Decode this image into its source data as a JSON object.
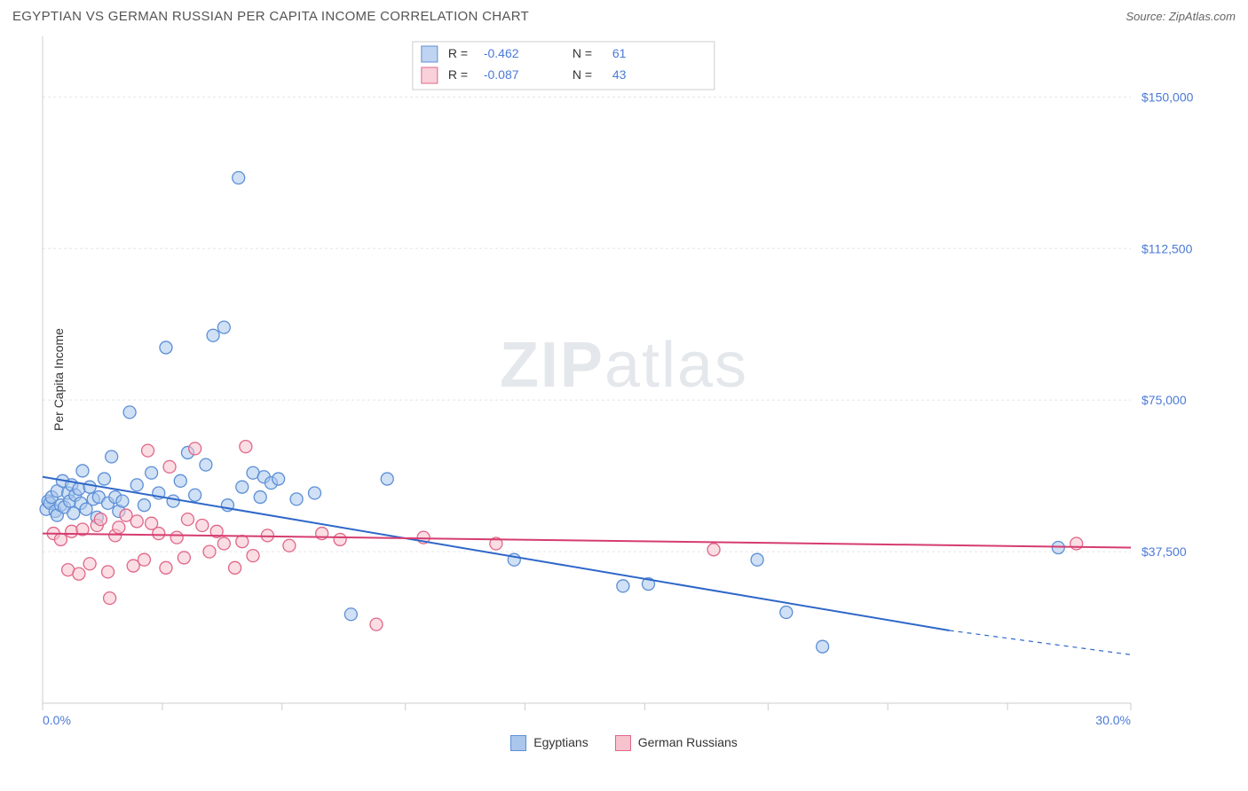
{
  "header": {
    "title": "EGYPTIAN VS GERMAN RUSSIAN PER CAPITA INCOME CORRELATION CHART",
    "source_prefix": "Source: ",
    "source": "ZipAtlas.com"
  },
  "watermark": {
    "left": "ZIP",
    "right": "atlas"
  },
  "chart": {
    "type": "scatter",
    "ylabel": "Per Capita Income",
    "xlim": [
      0,
      30
    ],
    "ylim": [
      0,
      165000
    ],
    "x_ticks": [
      0,
      3.3,
      6.6,
      10,
      13.3,
      16.6,
      20,
      23.3,
      26.6,
      30
    ],
    "x_tick_labels_visible": {
      "0": "0.0%",
      "30": "30.0%"
    },
    "y_ticks": [
      37500,
      75000,
      112500,
      150000
    ],
    "y_tick_labels": [
      "$37,500",
      "$75,000",
      "$112,500",
      "$150,000"
    ],
    "background_color": "#ffffff",
    "grid_color": "#e5e5e5",
    "axis_color": "#cccccc",
    "label_color": "#4b7ad6",
    "marker_radius": 7,
    "marker_stroke_width": 1.3,
    "line_width": 2,
    "series": [
      {
        "name": "Egyptians",
        "fill": "#aac6ec",
        "stroke": "#5c8fd6",
        "fill_opacity": 0.55,
        "line_color": "#2e67c8",
        "R": "-0.462",
        "N": "61",
        "regression": {
          "x1": 0,
          "y1": 56000,
          "x2": 25,
          "y2": 18000,
          "dash_from_x": 25,
          "x2_dash": 30,
          "y2_dash": 12000
        },
        "points": [
          [
            0.1,
            48000
          ],
          [
            0.15,
            50000
          ],
          [
            0.2,
            49500
          ],
          [
            0.25,
            51000
          ],
          [
            0.35,
            47500
          ],
          [
            0.4,
            52500
          ],
          [
            0.4,
            46500
          ],
          [
            0.5,
            49000
          ],
          [
            0.55,
            55000
          ],
          [
            0.6,
            48500
          ],
          [
            0.7,
            52000
          ],
          [
            0.75,
            50000
          ],
          [
            0.8,
            54000
          ],
          [
            0.85,
            47000
          ],
          [
            0.9,
            51500
          ],
          [
            1.0,
            53000
          ],
          [
            1.05,
            49500
          ],
          [
            1.1,
            57500
          ],
          [
            1.2,
            48000
          ],
          [
            1.3,
            53500
          ],
          [
            1.4,
            50500
          ],
          [
            1.5,
            46000
          ],
          [
            1.55,
            51000
          ],
          [
            1.7,
            55500
          ],
          [
            1.8,
            49500
          ],
          [
            1.9,
            61000
          ],
          [
            2.0,
            51000
          ],
          [
            2.1,
            47500
          ],
          [
            2.2,
            50000
          ],
          [
            2.4,
            72000
          ],
          [
            2.6,
            54000
          ],
          [
            2.8,
            49000
          ],
          [
            3.0,
            57000
          ],
          [
            3.2,
            52000
          ],
          [
            3.4,
            88000
          ],
          [
            3.6,
            50000
          ],
          [
            3.8,
            55000
          ],
          [
            4.0,
            62000
          ],
          [
            4.2,
            51500
          ],
          [
            4.5,
            59000
          ],
          [
            4.7,
            91000
          ],
          [
            5.0,
            93000
          ],
          [
            5.1,
            49000
          ],
          [
            5.4,
            130000
          ],
          [
            5.5,
            53500
          ],
          [
            5.8,
            57000
          ],
          [
            6.0,
            51000
          ],
          [
            6.1,
            56000
          ],
          [
            6.3,
            54500
          ],
          [
            6.5,
            55500
          ],
          [
            7.0,
            50500
          ],
          [
            7.5,
            52000
          ],
          [
            8.5,
            22000
          ],
          [
            9.5,
            55500
          ],
          [
            13.0,
            35500
          ],
          [
            16.0,
            29000
          ],
          [
            16.7,
            29500
          ],
          [
            19.7,
            35500
          ],
          [
            20.5,
            22500
          ],
          [
            21.5,
            14000
          ],
          [
            28.0,
            38500
          ]
        ]
      },
      {
        "name": "German Russians",
        "fill": "#f6c2ce",
        "stroke": "#e06688",
        "fill_opacity": 0.55,
        "line_color": "#d63c70",
        "R": "-0.087",
        "N": "43",
        "regression": {
          "x1": 0,
          "y1": 42000,
          "x2": 30,
          "y2": 38500
        },
        "points": [
          [
            0.3,
            42000
          ],
          [
            0.5,
            40500
          ],
          [
            0.7,
            33000
          ],
          [
            0.8,
            42500
          ],
          [
            1.0,
            32000
          ],
          [
            1.1,
            43000
          ],
          [
            1.3,
            34500
          ],
          [
            1.5,
            44000
          ],
          [
            1.6,
            45500
          ],
          [
            1.8,
            32500
          ],
          [
            1.85,
            26000
          ],
          [
            2.0,
            41500
          ],
          [
            2.1,
            43500
          ],
          [
            2.3,
            46500
          ],
          [
            2.5,
            34000
          ],
          [
            2.6,
            45000
          ],
          [
            2.8,
            35500
          ],
          [
            2.9,
            62500
          ],
          [
            3.0,
            44500
          ],
          [
            3.2,
            42000
          ],
          [
            3.4,
            33500
          ],
          [
            3.5,
            58500
          ],
          [
            3.7,
            41000
          ],
          [
            3.9,
            36000
          ],
          [
            4.0,
            45500
          ],
          [
            4.2,
            63000
          ],
          [
            4.4,
            44000
          ],
          [
            4.6,
            37500
          ],
          [
            4.8,
            42500
          ],
          [
            5.0,
            39500
          ],
          [
            5.3,
            33500
          ],
          [
            5.5,
            40000
          ],
          [
            5.6,
            63500
          ],
          [
            5.8,
            36500
          ],
          [
            6.2,
            41500
          ],
          [
            6.8,
            39000
          ],
          [
            7.7,
            42000
          ],
          [
            8.2,
            40500
          ],
          [
            9.2,
            19500
          ],
          [
            10.5,
            41000
          ],
          [
            12.5,
            39500
          ],
          [
            18.5,
            38000
          ],
          [
            28.5,
            39500
          ]
        ]
      }
    ],
    "stats_legend": {
      "R_label": "R  =",
      "N_label": "N  ="
    },
    "bottom_legend": {
      "items": [
        {
          "label": "Egyptians",
          "fill": "#aac6ec",
          "stroke": "#5c8fd6"
        },
        {
          "label": "German Russians",
          "fill": "#f6c2ce",
          "stroke": "#e06688"
        }
      ]
    }
  }
}
